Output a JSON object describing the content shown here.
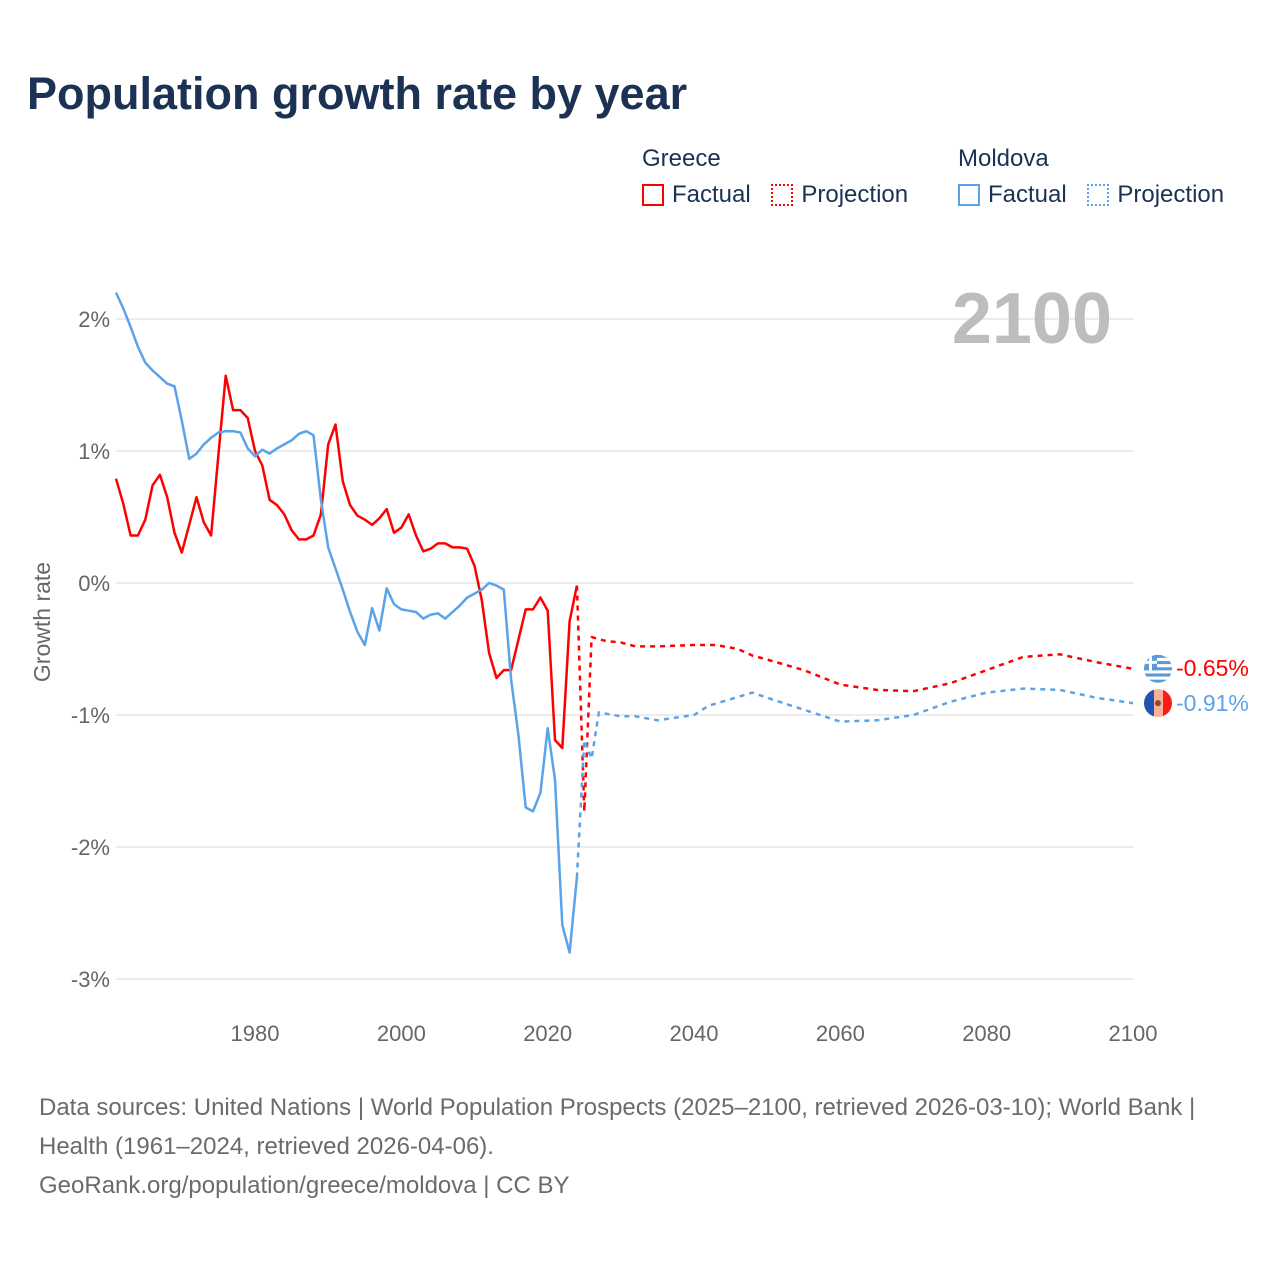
{
  "title": "Population growth rate by year",
  "legend": [
    {
      "group": "Greece",
      "color": "#ff0000",
      "items": [
        "Factual",
        "Projection"
      ]
    },
    {
      "group": "Moldova",
      "color": "#5ba3e8",
      "items": [
        "Factual",
        "Projection"
      ]
    }
  ],
  "year_watermark": "2100",
  "source_line1": "Data sources: United Nations | World Population Prospects (2025–2100, retrieved 2026-03-10); World Bank | Health (1961–2024, retrieved 2026-04-06).",
  "source_line2": "GeoRank.org/population/greece/moldova | CC BY",
  "chart_data": {
    "type": "line",
    "title": "Population growth rate by year",
    "xlabel": "",
    "ylabel": "Growth rate",
    "xlim": [
      1961,
      2100
    ],
    "ylim": [
      -3.3,
      2.3
    ],
    "x_ticks": [
      1980,
      2000,
      2020,
      2040,
      2060,
      2080,
      2100
    ],
    "y_ticks": [
      2,
      1,
      0,
      -1,
      -2,
      -3
    ],
    "y_tick_labels": [
      "2%",
      "1%",
      "0%",
      "-1%",
      "-2%",
      "-3%"
    ],
    "grid": true,
    "legend_position": "top-right",
    "series": [
      {
        "name": "Greece Factual",
        "color": "#ff0000",
        "style": "solid",
        "start_year": 1961,
        "values": [
          0.79,
          0.6,
          0.36,
          0.36,
          0.48,
          0.74,
          0.82,
          0.65,
          0.38,
          0.23,
          0.44,
          0.65,
          0.46,
          0.36,
          0.97,
          1.57,
          1.31,
          1.31,
          1.25,
          1.0,
          0.89,
          0.63,
          0.59,
          0.52,
          0.4,
          0.33,
          0.33,
          0.36,
          0.52,
          1.05,
          1.2,
          0.77,
          0.59,
          0.51,
          0.48,
          0.44,
          0.49,
          0.56,
          0.38,
          0.42,
          0.52,
          0.36,
          0.24,
          0.26,
          0.3,
          0.3,
          0.27,
          0.27,
          0.26,
          0.13,
          -0.13,
          -0.53,
          -0.72,
          -0.66,
          -0.66,
          -0.43,
          -0.2,
          -0.2,
          -0.11,
          -0.21,
          -1.19,
          -1.25,
          -0.29,
          -0.02
        ]
      },
      {
        "name": "Greece Projection",
        "color": "#ff0000",
        "style": "dotted",
        "points": [
          [
            2024,
            -0.02
          ],
          [
            2025,
            -1.73
          ],
          [
            2026,
            -0.41
          ],
          [
            2028,
            -0.44
          ],
          [
            2030,
            -0.45
          ],
          [
            2032,
            -0.48
          ],
          [
            2035,
            -0.48
          ],
          [
            2040,
            -0.47
          ],
          [
            2043,
            -0.47
          ],
          [
            2046,
            -0.5
          ],
          [
            2048,
            -0.55
          ],
          [
            2050,
            -0.58
          ],
          [
            2055,
            -0.66
          ],
          [
            2060,
            -0.77
          ],
          [
            2065,
            -0.81
          ],
          [
            2070,
            -0.82
          ],
          [
            2075,
            -0.76
          ],
          [
            2080,
            -0.66
          ],
          [
            2085,
            -0.56
          ],
          [
            2090,
            -0.54
          ],
          [
            2095,
            -0.6
          ],
          [
            2100,
            -0.65
          ]
        ]
      },
      {
        "name": "Moldova Factual",
        "color": "#5ba3e8",
        "style": "solid",
        "start_year": 1961,
        "values": [
          2.2,
          2.08,
          1.94,
          1.79,
          1.67,
          1.61,
          1.56,
          1.51,
          1.49,
          1.23,
          0.94,
          0.98,
          1.05,
          1.1,
          1.14,
          1.15,
          1.15,
          1.14,
          1.02,
          0.96,
          1.01,
          0.98,
          1.02,
          1.05,
          1.08,
          1.13,
          1.15,
          1.12,
          0.63,
          0.27,
          0.11,
          -0.05,
          -0.22,
          -0.37,
          -0.47,
          -0.19,
          -0.36,
          -0.04,
          -0.16,
          -0.2,
          -0.21,
          -0.22,
          -0.27,
          -0.24,
          -0.23,
          -0.27,
          -0.22,
          -0.17,
          -0.11,
          -0.08,
          -0.05,
          0.0,
          -0.02,
          -0.05,
          -0.73,
          -1.15,
          -1.7,
          -1.73,
          -1.59,
          -1.1,
          -1.49,
          -2.59,
          -2.8,
          -2.23
        ]
      },
      {
        "name": "Moldova Projection",
        "color": "#5ba3e8",
        "style": "dotted",
        "points": [
          [
            2024,
            -2.23
          ],
          [
            2025,
            -1.19
          ],
          [
            2026,
            -1.33
          ],
          [
            2027,
            -0.98
          ],
          [
            2030,
            -1.01
          ],
          [
            2032,
            -1.01
          ],
          [
            2035,
            -1.04
          ],
          [
            2040,
            -1.0
          ],
          [
            2042,
            -0.93
          ],
          [
            2045,
            -0.88
          ],
          [
            2048,
            -0.83
          ],
          [
            2050,
            -0.87
          ],
          [
            2055,
            -0.96
          ],
          [
            2060,
            -1.05
          ],
          [
            2065,
            -1.04
          ],
          [
            2070,
            -1.0
          ],
          [
            2075,
            -0.9
          ],
          [
            2080,
            -0.83
          ],
          [
            2085,
            -0.8
          ],
          [
            2090,
            -0.81
          ],
          [
            2095,
            -0.87
          ],
          [
            2100,
            -0.91
          ]
        ]
      }
    ],
    "end_labels": [
      {
        "country": "Greece",
        "value": "-0.65%",
        "color": "#ff0000",
        "flag": "greece-flag-icon"
      },
      {
        "country": "Moldova",
        "value": "-0.91%",
        "color": "#5ba3e8",
        "flag": "moldova-flag-icon"
      }
    ]
  }
}
